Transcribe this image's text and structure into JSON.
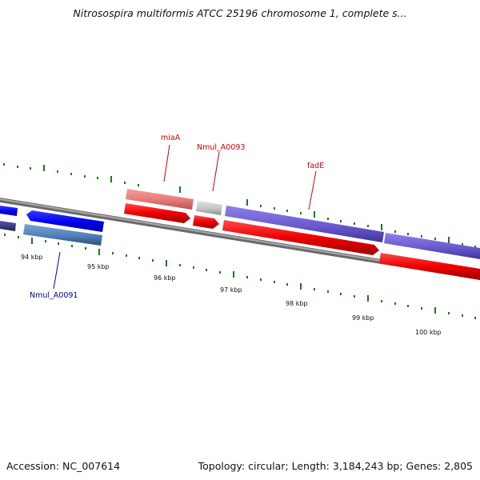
{
  "header": {
    "title": "Nitrosospira multiformis ATCC 25196 chromosome 1, complete s..."
  },
  "footer": {
    "accession": "Accession: NC_007614",
    "stats": "Topology: circular; Length: 3,184,243 bp; Genes: 2,805"
  },
  "scale": {
    "ticks": [
      "94 kbp",
      "95 kbp",
      "96 kbp",
      "97 kbp",
      "98 kbp",
      "99 kbp",
      "100 kbp"
    ]
  },
  "genes": {
    "miaA": "miaA",
    "nmul_a0093": "Nmul_A0093",
    "fadE": "fadE",
    "nmul_a0091": "Nmul_A0091"
  },
  "colors": {
    "backbone": "#8a8a8a",
    "cds_forward": "#ff0000",
    "gene_forward": "#ee8080",
    "gene_purple": "#7060d0",
    "gene_blue": "#0000ee",
    "gene_steel": "#5080b8",
    "pseudo_gray": "#c8c8c8",
    "tick_green": "#1a7a1a",
    "label_red": "#cc0000",
    "label_blue": "#0000aa"
  }
}
